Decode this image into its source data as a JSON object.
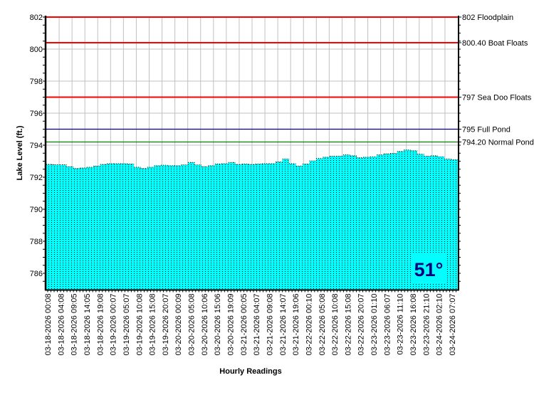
{
  "chart_data": {
    "type": "area",
    "title": "",
    "xlabel": "Hourly Readings",
    "ylabel": "Lake Level (ft.)",
    "ylim": [
      785,
      802
    ],
    "yticks": [
      786,
      788,
      790,
      792,
      794,
      796,
      798,
      800,
      802
    ],
    "grid": true,
    "x_tick_labels": [
      "03-18-2026 00:08",
      "03-18-2026 04:08",
      "03-18-2026 09:05",
      "03-18-2026 14:05",
      "03-18-2026 19:08",
      "03-19-2026 00:07",
      "03-19-2026 05:07",
      "03-19-2026 10:08",
      "03-19-2026 15:08",
      "03-19-2026 20:07",
      "03-20-2026 00:09",
      "03-20-2026 05:08",
      "03-20-2026 10:06",
      "03-20-2026 15:06",
      "03-20-2026 19:09",
      "03-21-2026 00:05",
      "03-21-2026 04:07",
      "03-21-2026 09:08",
      "03-21-2026 14:07",
      "03-21-2026 19:06",
      "03-22-2026 00:10",
      "03-22-2026 05:08",
      "03-22-2026 10:08",
      "03-22-2026 15:08",
      "03-22-2026 20:07",
      "03-23-2026 01:10",
      "03-23-2026 06:07",
      "03-23-2026 11:10",
      "03-23-2026 16:08",
      "03-23-2026 21:10",
      "03-24-2026 02:10",
      "03-24-2026 07:07"
    ],
    "series": [
      {
        "name": "Lake Level",
        "color": "#00FFFF",
        "values": [
          792.8,
          792.78,
          792.78,
          792.66,
          792.55,
          792.58,
          792.62,
          792.7,
          792.8,
          792.85,
          792.85,
          792.85,
          792.83,
          792.62,
          792.55,
          792.62,
          792.72,
          792.75,
          792.72,
          792.72,
          792.77,
          792.92,
          792.77,
          792.66,
          792.72,
          792.83,
          792.85,
          792.92,
          792.8,
          792.83,
          792.8,
          792.83,
          792.85,
          792.85,
          792.96,
          793.14,
          792.85,
          792.7,
          792.83,
          793.02,
          793.17,
          793.25,
          793.31,
          793.31,
          793.4,
          793.34,
          793.22,
          793.25,
          793.28,
          793.4,
          793.46,
          793.49,
          793.61,
          793.7,
          793.66,
          793.44,
          793.31,
          793.34,
          793.28,
          793.14,
          793.1
        ]
      }
    ],
    "reference_lines": [
      {
        "value": 802,
        "label": "802 Floodplain",
        "color": "#FF0000"
      },
      {
        "value": 800.4,
        "label": "800.40 Boat Floats",
        "color": "#FF0000"
      },
      {
        "value": 797,
        "label": "797 Sea Doo Floats",
        "color": "#FF0000"
      },
      {
        "value": 795,
        "label": "795 Full Pond",
        "color": "#000080"
      },
      {
        "value": 794.2,
        "label": "794.20 Normal Pond",
        "color": "#008000"
      }
    ],
    "annotation": {
      "label": "51°",
      "color": "#000080",
      "background": "#00FFFF"
    }
  }
}
